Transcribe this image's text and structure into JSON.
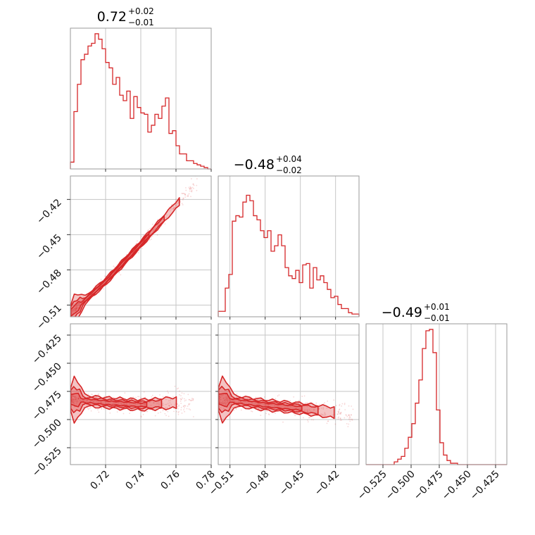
{
  "chart_data": {
    "type": "corner",
    "color": "#d62728",
    "parameters": [
      {
        "title": {
          "median": "0.72",
          "plus": "+0.02",
          "minus": "−0.01"
        },
        "range": [
          0.7,
          0.78
        ],
        "ticks": [
          0.72,
          0.74,
          0.76,
          0.78
        ],
        "tick_labels": [
          "0.72",
          "0.74",
          "0.76",
          "0.78"
        ]
      },
      {
        "title": {
          "median": "−0.48",
          "plus": "+0.04",
          "minus": "−0.02"
        },
        "range": [
          -0.52,
          -0.4
        ],
        "ticks": [
          -0.51,
          -0.48,
          -0.45,
          -0.42
        ],
        "tick_labels": [
          "−0.51",
          "−0.48",
          "−0.45",
          "−0.42"
        ]
      },
      {
        "title": {
          "median": "−0.49",
          "plus": "+0.01",
          "minus": "−0.01"
        },
        "range": [
          -0.54,
          -0.415
        ],
        "ticks": [
          -0.525,
          -0.5,
          -0.475,
          -0.45,
          -0.425
        ],
        "tick_labels": [
          "−0.525",
          "−0.500",
          "−0.475",
          "−0.450",
          "−0.425"
        ]
      }
    ],
    "histograms": [
      {
        "parameter": 0,
        "bins": [
          0.7,
          0.78
        ],
        "counts": [
          0.05,
          0.42,
          0.62,
          0.8,
          0.84,
          0.9,
          0.92,
          0.99,
          0.95,
          0.88,
          0.78,
          0.74,
          0.62,
          0.67,
          0.54,
          0.5,
          0.57,
          0.37,
          0.53,
          0.45,
          0.41,
          0.4,
          0.27,
          0.32,
          0.4,
          0.37,
          0.46,
          0.52,
          0.26,
          0.28,
          0.17,
          0.11,
          0.11,
          0.06,
          0.06,
          0.04,
          0.03,
          0.02,
          0.01,
          0.0
        ]
      },
      {
        "parameter": 1,
        "bins": [
          -0.52,
          -0.4
        ],
        "counts": [
          0.04,
          0.04,
          0.21,
          0.31,
          0.7,
          0.74,
          0.73,
          0.84,
          0.89,
          0.85,
          0.74,
          0.71,
          0.63,
          0.58,
          0.63,
          0.48,
          0.52,
          0.6,
          0.52,
          0.36,
          0.3,
          0.28,
          0.34,
          0.25,
          0.38,
          0.39,
          0.21,
          0.36,
          0.27,
          0.3,
          0.25,
          0.2,
          0.14,
          0.15,
          0.09,
          0.06,
          0.06,
          0.03,
          0.02,
          0.02
        ]
      },
      {
        "parameter": 2,
        "bins": [
          -0.54,
          -0.415
        ],
        "counts": [
          0,
          0,
          0,
          0,
          0,
          0,
          0,
          0,
          0.02,
          0.04,
          0.06,
          0.12,
          0.2,
          0.3,
          0.45,
          0.62,
          0.85,
          0.98,
          0.99,
          0.82,
          0.4,
          0.16,
          0.07,
          0.03,
          0.01,
          0.01,
          0,
          0,
          0,
          0,
          0,
          0,
          0,
          0,
          0,
          0,
          0,
          0,
          0,
          0
        ]
      }
    ],
    "contours": [
      {
        "x_parameter": 0,
        "y_parameter": 1,
        "ridge": [
          [
            0.7,
            -0.517
          ],
          [
            0.72,
            -0.49
          ],
          [
            0.74,
            -0.458
          ],
          [
            0.76,
            -0.425
          ]
        ],
        "scatter_spread": [
          [
            0.7,
            0.772
          ],
          [
            -0.52,
            -0.405
          ]
        ]
      },
      {
        "x_parameter": 0,
        "y_parameter": 2,
        "ridge": [
          [
            0.7,
            -0.482
          ],
          [
            0.72,
            -0.485
          ],
          [
            0.74,
            -0.487
          ],
          [
            0.76,
            -0.485
          ]
        ],
        "scatter_spread": [
          [
            0.7,
            0.77
          ],
          [
            -0.51,
            -0.465
          ]
        ]
      },
      {
        "x_parameter": 1,
        "y_parameter": 2,
        "ridge": [
          [
            -0.518,
            -0.482
          ],
          [
            -0.48,
            -0.487
          ],
          [
            -0.45,
            -0.49
          ],
          [
            -0.42,
            -0.494
          ]
        ],
        "scatter_spread": [
          [
            -0.52,
            -0.405
          ],
          [
            -0.51,
            -0.465
          ]
        ]
      }
    ],
    "grid": true
  }
}
